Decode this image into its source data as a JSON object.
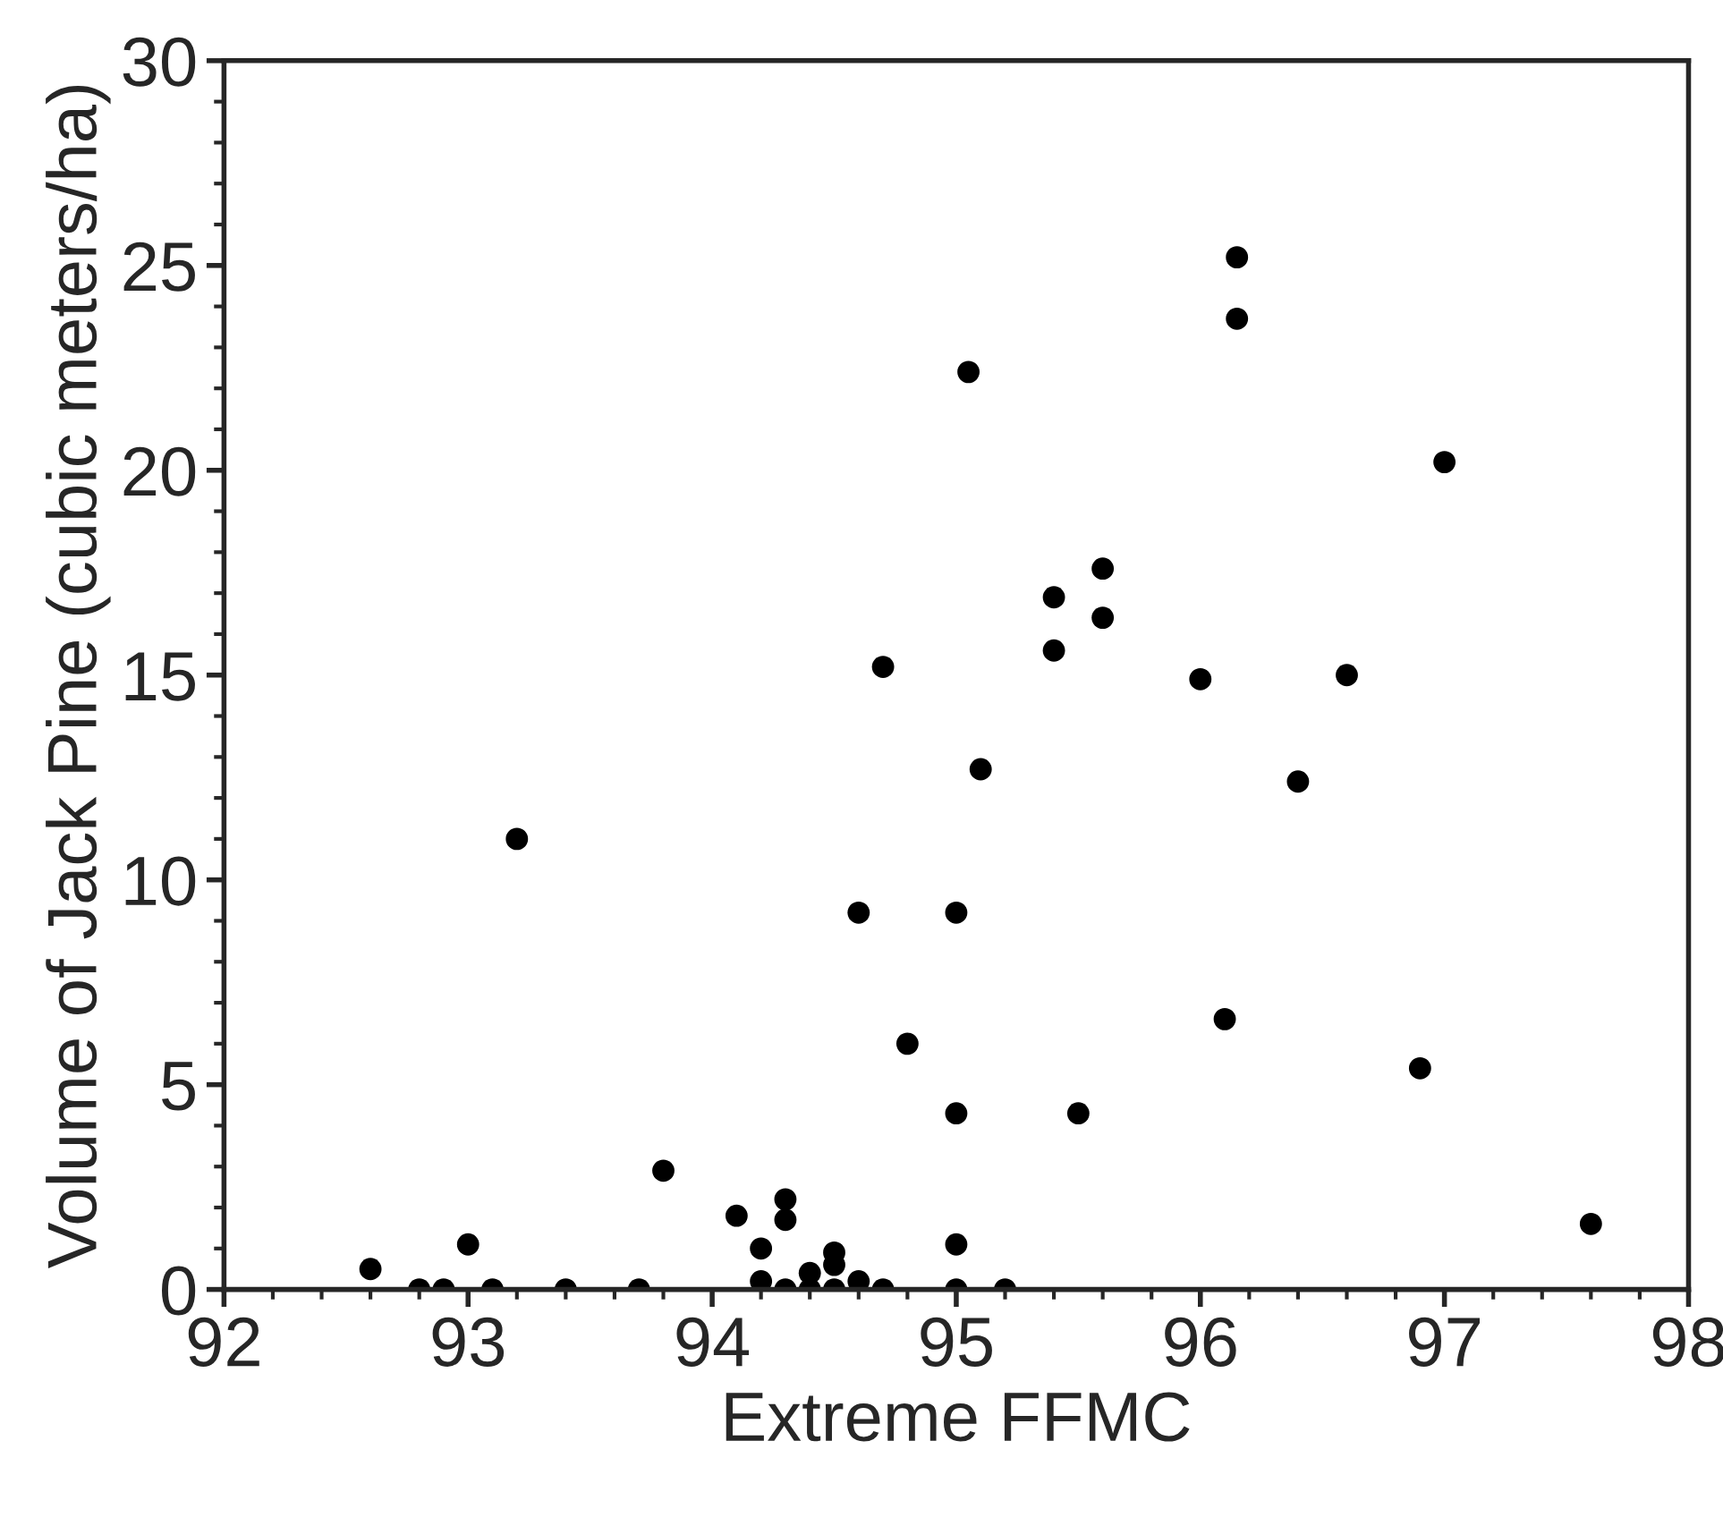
{
  "chart_data": {
    "type": "scatter",
    "xlabel": "Extreme FFMC",
    "ylabel": "Volume of Jack Pine (cubic meters/ha)",
    "xlim": [
      92,
      98
    ],
    "xticks": [
      92,
      93,
      94,
      95,
      96,
      97,
      98
    ],
    "ylim": [
      0,
      30
    ],
    "yticks": [
      0,
      5,
      10,
      15,
      20,
      25,
      30
    ],
    "marker": "circle",
    "grid": false,
    "legend": false,
    "series": [
      {
        "color": "#000000",
        "x": [
          92.6,
          92.8,
          92.9,
          93.0,
          93.1,
          93.4,
          93.7,
          93.2,
          93.8,
          94.1,
          94.2,
          94.2,
          94.3,
          94.3,
          94.3,
          94.4,
          94.4,
          94.5,
          94.5,
          94.5,
          94.6,
          94.7,
          94.6,
          94.7,
          94.8,
          95.0,
          95.0,
          95.0,
          95.0,
          95.05,
          95.1,
          95.2,
          95.4,
          95.4,
          95.5,
          95.6,
          95.6,
          96.0,
          96.1,
          96.15,
          96.15,
          96.4,
          96.6,
          96.9,
          97.0,
          97.6
        ],
        "values": [
          0.5,
          0,
          0,
          1.1,
          0,
          0,
          0,
          11.0,
          2.9,
          1.8,
          1.0,
          0.2,
          2.2,
          1.7,
          0,
          0.4,
          0,
          0.9,
          0.6,
          0,
          0.2,
          0,
          9.2,
          15.2,
          6.0,
          9.2,
          4.3,
          1.1,
          0,
          22.4,
          12.7,
          0,
          16.9,
          15.6,
          4.3,
          17.6,
          16.4,
          14.9,
          6.6,
          25.2,
          23.7,
          12.4,
          15.0,
          5.4,
          20.2,
          1.6
        ]
      }
    ]
  }
}
